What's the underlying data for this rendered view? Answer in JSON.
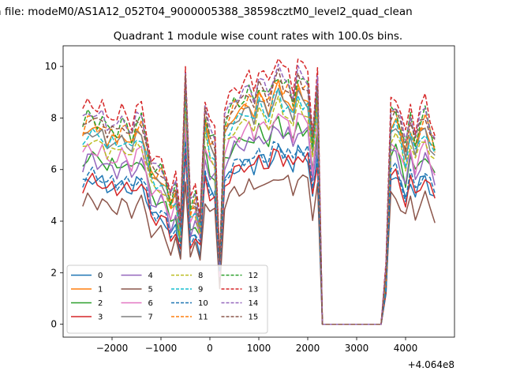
{
  "figure": {
    "suptitle": "n file: modeM0/AS1A12_052T04_9000005388_38598cztM0_level2_quad_clean",
    "title": "Quadrant 1 module wise count rates with 100.0s bins.",
    "x_offset_label": "+4.064e8"
  },
  "chart_data": {
    "type": "line",
    "title": "Quadrant 1 module wise count rates with 100.0s bins.",
    "xlabel": "",
    "ylabel": "",
    "xlim": [
      -3000,
      5000
    ],
    "ylim": [
      -0.5,
      10.8
    ],
    "x_ticks": [
      -2000,
      -1000,
      0,
      1000,
      2000,
      3000,
      4000
    ],
    "x_tick_labels": [
      "−2000",
      "−1000",
      "0",
      "1000",
      "2000",
      "3000",
      "4000"
    ],
    "y_ticks": [
      0,
      2,
      4,
      6,
      8,
      10
    ],
    "y_tick_labels": [
      "0",
      "2",
      "4",
      "6",
      "8",
      "10"
    ],
    "x_offset": "+4.064e8",
    "grid": false,
    "legend_position": "lower-left",
    "legend_columns": 4,
    "x": [
      -2600,
      -2500,
      -2400,
      -2300,
      -2200,
      -2100,
      -2000,
      -1900,
      -1800,
      -1700,
      -1600,
      -1500,
      -1400,
      -1300,
      -1200,
      -1100,
      -1000,
      -900,
      -800,
      -700,
      -600,
      -500,
      -400,
      -300,
      -200,
      -100,
      0,
      100,
      200,
      300,
      400,
      500,
      600,
      700,
      800,
      900,
      1000,
      1100,
      1200,
      1300,
      1400,
      1500,
      1600,
      1700,
      1800,
      1900,
      2000,
      2100,
      2200,
      2300,
      2400,
      3500,
      3600,
      3700,
      3800,
      3900,
      4000,
      4100,
      4200,
      4300,
      4400,
      4500,
      4600
    ],
    "base_profile": [
      5.6,
      5.9,
      5.9,
      5.7,
      5.8,
      5.5,
      5.6,
      5.4,
      5.7,
      5.6,
      5.3,
      5.7,
      5.8,
      5.2,
      4.4,
      4.3,
      4.4,
      4.1,
      3.5,
      3.9,
      2.9,
      7.0,
      3.3,
      3.6,
      3.0,
      6.0,
      5.3,
      5.2,
      1.8,
      5.7,
      6.0,
      6.3,
      6.3,
      6.4,
      6.6,
      6.3,
      6.8,
      6.6,
      6.4,
      6.9,
      7.1,
      6.7,
      6.8,
      6.3,
      7.0,
      6.8,
      6.8,
      5.2,
      6.7,
      0.0,
      0.0,
      0.0,
      1.5,
      6.0,
      6.1,
      5.6,
      5.0,
      5.9,
      5.2,
      5.7,
      6.0,
      5.5,
      5.1
    ],
    "series": [
      {
        "name": "0",
        "color": "#1f77b4",
        "dash": "solid",
        "scale": 0.96
      },
      {
        "name": "1",
        "color": "#ff7f0e",
        "dash": "solid",
        "scale": 1.3
      },
      {
        "name": "2",
        "color": "#2ca02c",
        "dash": "solid",
        "scale": 1.11
      },
      {
        "name": "3",
        "color": "#d62728",
        "dash": "solid",
        "scale": 0.95
      },
      {
        "name": "4",
        "color": "#9467bd",
        "dash": "solid",
        "scale": 1.09
      },
      {
        "name": "5",
        "color": "#8c564b",
        "dash": "solid",
        "scale": 0.82
      },
      {
        "name": "6",
        "color": "#e377c2",
        "dash": "solid",
        "scale": 1.16
      },
      {
        "name": "7",
        "color": "#7f7f7f",
        "dash": "solid",
        "scale": 1.27
      },
      {
        "name": "8",
        "color": "#bcbd22",
        "dash": "dashed",
        "scale": 1.21
      },
      {
        "name": "9",
        "color": "#17becf",
        "dash": "dashed",
        "scale": 1.26
      },
      {
        "name": "10",
        "color": "#1f77b4",
        "dash": "dashed",
        "scale": 0.99
      },
      {
        "name": "11",
        "color": "#ff7f0e",
        "dash": "dashed",
        "scale": 1.34
      },
      {
        "name": "12",
        "color": "#2ca02c",
        "dash": "dashed",
        "scale": 1.37
      },
      {
        "name": "13",
        "color": "#d62728",
        "dash": "dashed",
        "scale": 1.46
      },
      {
        "name": "14",
        "color": "#9467bd",
        "dash": "dashed",
        "scale": 1.4
      },
      {
        "name": "15",
        "color": "#8c564b",
        "dash": "dashed",
        "scale": 1.36
      }
    ]
  }
}
